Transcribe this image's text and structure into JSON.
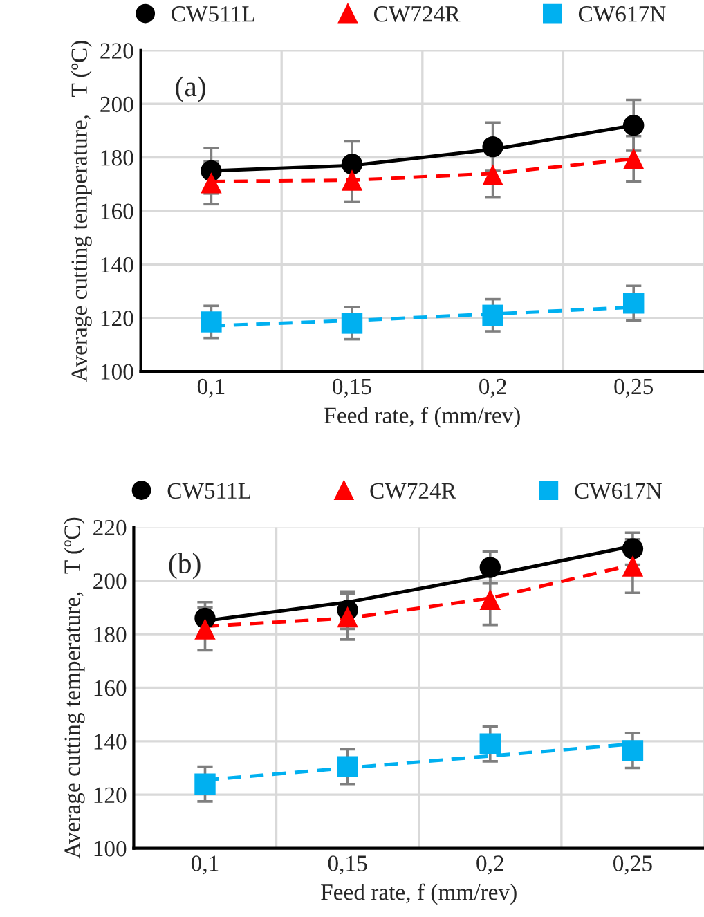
{
  "chart_data": [
    {
      "type": "scatter",
      "categories": [
        "0,1",
        "0,15",
        "0,2",
        "0,25"
      ],
      "xlabel": "Feed rate, f (mm/rev)",
      "ylabel": "Average cutting temperature,   T (ºC)",
      "ylim": [
        100,
        220
      ],
      "yticks": [
        100,
        120,
        140,
        160,
        180,
        200,
        220
      ],
      "grid": true,
      "legend": "top",
      "annotations": [
        "(a)"
      ],
      "series": [
        {
          "name": "CW511L",
          "marker": "circle",
          "color": "#000000",
          "values": [
            175,
            177.5,
            184,
            192
          ],
          "errors": [
            8.5,
            8.5,
            9,
            9.5
          ]
        },
        {
          "name": "CW724R",
          "marker": "triangle",
          "color": "#ff0000",
          "values": [
            170.5,
            171.5,
            173.5,
            179.5
          ],
          "errors": [
            8,
            8,
            8.5,
            8.5
          ]
        },
        {
          "name": "CW617N",
          "marker": "square",
          "color": "#00b0f0",
          "values": [
            118.5,
            118,
            121,
            125.5
          ],
          "errors": [
            6,
            6,
            6,
            6.5
          ]
        },
        {
          "type": "line",
          "line_style": "solid",
          "color": "#000000",
          "values": [
            175,
            177,
            183,
            192
          ]
        },
        {
          "type": "line",
          "line_style": "dashed",
          "color": "#ff0000",
          "values": [
            171,
            171.5,
            174,
            179.5
          ]
        },
        {
          "type": "line",
          "line_style": "dashed",
          "color": "#00b0f0",
          "values": [
            117,
            119,
            121.5,
            124
          ]
        }
      ]
    },
    {
      "type": "scatter",
      "categories": [
        "0,1",
        "0,15",
        "0,2",
        "0,25"
      ],
      "xlabel": "Feed rate, f (mm/rev)",
      "ylabel": "Average cutting temperature,   T (ºC)",
      "ylim": [
        100,
        220
      ],
      "yticks": [
        100,
        120,
        140,
        160,
        180,
        200,
        220
      ],
      "grid": true,
      "legend": "top",
      "annotations": [
        "(b)"
      ],
      "series": [
        {
          "name": "CW511L",
          "marker": "circle",
          "color": "#000000",
          "values": [
            186,
            189,
            205,
            212
          ],
          "errors": [
            6,
            7,
            6,
            6
          ]
        },
        {
          "name": "CW724R",
          "marker": "triangle",
          "color": "#ff0000",
          "values": [
            182,
            186.5,
            193,
            205.5
          ],
          "errors": [
            8,
            8.5,
            9.5,
            10
          ]
        },
        {
          "name": "CW617N",
          "marker": "square",
          "color": "#00b0f0",
          "values": [
            124,
            130.5,
            139,
            136.5
          ],
          "errors": [
            6.5,
            6.5,
            6.5,
            6.5
          ]
        },
        {
          "type": "line",
          "line_style": "solid",
          "color": "#000000",
          "values": [
            185,
            192,
            202,
            213
          ]
        },
        {
          "type": "line",
          "line_style": "dashed",
          "color": "#ff0000",
          "values": [
            183,
            186,
            193.5,
            206
          ]
        },
        {
          "type": "line",
          "line_style": "dashed",
          "color": "#00b0f0",
          "values": [
            125.5,
            130,
            134.5,
            139
          ]
        }
      ]
    }
  ]
}
